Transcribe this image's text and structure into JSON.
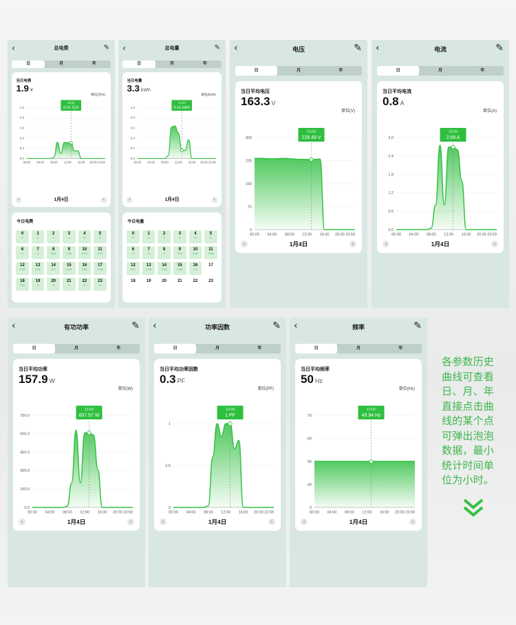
{
  "tabs": [
    "日",
    "月",
    "年"
  ],
  "panels": [
    {
      "id": "fee",
      "title": "总电费",
      "summary_label": "当日电费",
      "summary_value": "1.9",
      "summary_unit": "¥",
      "unit_label": "单位(元/¥)",
      "tooltip_time": "13:00",
      "tooltip_value": "0.31 元/¥",
      "date": "1月4日",
      "y_ticks": [
        "1.0",
        "0.8",
        "0.6",
        "0.4",
        "0.2",
        "0.0"
      ],
      "x_ticks": [
        "00:00",
        "04:00",
        "08:00",
        "12:00",
        "16:00",
        "20:00 23:59"
      ],
      "chart_data": {
        "type": "area",
        "x": [
          "00:00",
          "01:00",
          "02:00",
          "03:00",
          "04:00",
          "05:00",
          "06:00",
          "07:00",
          "08:00",
          "09:00",
          "10:00",
          "11:00",
          "12:00",
          "13:00",
          "14:00",
          "15:00",
          "16:00",
          "17:00",
          "18:00",
          "19:00",
          "20:00",
          "21:00",
          "22:00",
          "23:00"
        ],
        "y": [
          0,
          0,
          0,
          0,
          0,
          0,
          0,
          0,
          0.02,
          0.32,
          0.1,
          0.31,
          0.31,
          0.31,
          0.15,
          0.15,
          0,
          0,
          0,
          0,
          0,
          0,
          0,
          0
        ],
        "ylim": [
          0,
          1.0
        ],
        "highlight_x": "13:00"
      },
      "list_title": "今日电费",
      "days": [
        {
          "d": "0",
          "v": "0"
        },
        {
          "d": "1",
          "v": "0"
        },
        {
          "d": "2",
          "v": "0"
        },
        {
          "d": "3",
          "v": "0"
        },
        {
          "d": "4",
          "v": "0"
        },
        {
          "d": "5",
          "v": "0"
        },
        {
          "d": "6",
          "v": "0"
        },
        {
          "d": "7",
          "v": "0"
        },
        {
          "d": "8",
          "v": "0.54"
        },
        {
          "d": "9",
          "v": "0.32"
        },
        {
          "d": "10",
          "v": "0.23"
        },
        {
          "d": "11",
          "v": "0.07"
        },
        {
          "d": "12",
          "v": "0.32"
        },
        {
          "d": "13",
          "v": "0.31"
        },
        {
          "d": "14",
          "v": "0.3"
        },
        {
          "d": "15",
          "v": "0.29"
        },
        {
          "d": "16",
          "v": "0.37"
        },
        {
          "d": "17",
          "v": "0.15"
        },
        {
          "d": "18",
          "v": "0.01"
        },
        {
          "d": "19",
          "v": "0"
        },
        {
          "d": "20",
          "v": "0"
        },
        {
          "d": "21",
          "v": "0"
        },
        {
          "d": "22",
          "v": "0"
        },
        {
          "d": "23",
          "v": "0"
        }
      ]
    },
    {
      "id": "energy",
      "title": "总电量",
      "summary_label": "当日电量",
      "summary_value": "3.3",
      "summary_unit": "kWh",
      "unit_label": "单位(kWh)",
      "tooltip_time": "13:00",
      "tooltip_value": "0.16 kWh",
      "date": "1月4日",
      "y_ticks": [
        "1.0",
        "0.8",
        "0.6",
        "0.4",
        "0.2",
        "0.0"
      ],
      "x_ticks": [
        "00:00",
        "04:00",
        "08:00",
        "12:00",
        "16:00",
        "20:00 23:59"
      ],
      "chart_data": {
        "type": "area",
        "x": [
          "00:00",
          "01:00",
          "02:00",
          "03:00",
          "04:00",
          "05:00",
          "06:00",
          "07:00",
          "08:00",
          "09:00",
          "10:00",
          "11:00",
          "12:00",
          "13:00",
          "14:00",
          "15:00",
          "16:00",
          "17:00",
          "18:00",
          "19:00",
          "20:00",
          "21:00",
          "22:00",
          "23:00"
        ],
        "y": [
          0,
          0,
          0,
          0,
          0,
          0,
          0,
          0,
          0,
          0.05,
          0.62,
          0.64,
          0.5,
          0.16,
          0.16,
          0.37,
          0,
          0,
          0,
          0,
          0,
          0,
          0,
          0
        ],
        "ylim": [
          0,
          1.0
        ],
        "highlight_x": "13:00"
      },
      "list_title": "今日电量",
      "days": [
        {
          "d": "0",
          "v": "0"
        },
        {
          "d": "1",
          "v": "0"
        },
        {
          "d": "2",
          "v": "0"
        },
        {
          "d": "3",
          "v": "0"
        },
        {
          "d": "4",
          "v": "0"
        },
        {
          "d": "5",
          "v": "0"
        },
        {
          "d": "6",
          "v": "0"
        },
        {
          "d": "7",
          "v": "0"
        },
        {
          "d": "8",
          "v": "0"
        },
        {
          "d": "9",
          "v": "0.6"
        },
        {
          "d": "10",
          "v": "0.63"
        },
        {
          "d": "11",
          "v": "0.66"
        },
        {
          "d": "12",
          "v": "0.57"
        },
        {
          "d": "13",
          "v": "0.16"
        },
        {
          "d": "14",
          "v": "0.15"
        },
        {
          "d": "15",
          "v": "0.14"
        },
        {
          "d": "16",
          "v": "0.4"
        },
        {
          "d": "17",
          "v": ""
        },
        {
          "d": "18",
          "v": ""
        },
        {
          "d": "19",
          "v": ""
        },
        {
          "d": "20",
          "v": ""
        },
        {
          "d": "21",
          "v": ""
        },
        {
          "d": "22",
          "v": ""
        },
        {
          "d": "23",
          "v": ""
        }
      ]
    },
    {
      "id": "voltage",
      "title": "电压",
      "summary_label": "当日平均电压",
      "summary_value": "163.3",
      "summary_unit": "V",
      "unit_label": "单位(V)",
      "tooltip_time": "13:00",
      "tooltip_value": "228.49 V",
      "date": "1月4日",
      "y_ticks": [
        "300",
        "225",
        "150",
        "75",
        "0"
      ],
      "x_ticks": [
        "00:00",
        "04:00",
        "08:00",
        "12:00",
        "16:00",
        "20:00 23:59"
      ],
      "chart_data": {
        "type": "area",
        "x": [
          "00:00",
          "01:00",
          "02:00",
          "03:00",
          "04:00",
          "05:00",
          "06:00",
          "07:00",
          "08:00",
          "09:00",
          "10:00",
          "11:00",
          "12:00",
          "13:00",
          "14:00",
          "15:00",
          "16:00",
          "17:00",
          "18:00",
          "19:00",
          "20:00",
          "21:00",
          "22:00",
          "23:00"
        ],
        "y": [
          232,
          232,
          232,
          231,
          231,
          231,
          232,
          232,
          231,
          230,
          229,
          229,
          228.5,
          228.49,
          229,
          230,
          0,
          0,
          0,
          0,
          0,
          0,
          0,
          0
        ],
        "ylim": [
          0,
          300
        ],
        "highlight_x": "13:00"
      }
    },
    {
      "id": "current",
      "title": "电流",
      "summary_label": "当日平均电流",
      "summary_value": "0.8",
      "summary_unit": "A",
      "unit_label": "单位(A)",
      "tooltip_time": "13:00",
      "tooltip_value": "2.69 A",
      "date": "1月4日",
      "y_ticks": [
        "3.0",
        "2.4",
        "1.8",
        "1.2",
        "0.6",
        "0.0"
      ],
      "x_ticks": [
        "00:00",
        "04:00",
        "08:00",
        "12:00",
        "16:00",
        "20:00 23:59"
      ],
      "chart_data": {
        "type": "area",
        "x": [
          "00:00",
          "01:00",
          "02:00",
          "03:00",
          "04:00",
          "05:00",
          "06:00",
          "07:00",
          "08:00",
          "09:00",
          "10:00",
          "11:00",
          "12:00",
          "13:00",
          "14:00",
          "15:00",
          "16:00",
          "17:00",
          "18:00",
          "19:00",
          "20:00",
          "21:00",
          "22:00",
          "23:00"
        ],
        "y": [
          0,
          0,
          0,
          0,
          0,
          0,
          0,
          0,
          0.05,
          0.8,
          2.75,
          0.8,
          2.69,
          2.69,
          2.6,
          1.6,
          0,
          0,
          0,
          0,
          0,
          0,
          0,
          0
        ],
        "ylim": [
          0,
          3.0
        ],
        "highlight_x": "13:00"
      }
    },
    {
      "id": "active_power",
      "title": "有功功率",
      "summary_label": "当日平均功率",
      "summary_value": "157.9",
      "summary_unit": "W",
      "unit_label": "单位(W)",
      "tooltip_time": "13:00",
      "tooltip_value": "607.57 W",
      "date": "1月4日",
      "y_ticks": [
        "750.0",
        "600.0",
        "450.0",
        "300.0",
        "150.0",
        "0.0"
      ],
      "x_ticks": [
        "00:00",
        "04:00",
        "08:00",
        "12:00",
        "16:00",
        "20:00 23:59"
      ],
      "chart_data": {
        "type": "area",
        "x": [
          "00:00",
          "01:00",
          "02:00",
          "03:00",
          "04:00",
          "05:00",
          "06:00",
          "07:00",
          "08:00",
          "09:00",
          "10:00",
          "11:00",
          "12:00",
          "13:00",
          "14:00",
          "15:00",
          "16:00",
          "17:00",
          "18:00",
          "19:00",
          "20:00",
          "21:00",
          "22:00",
          "23:00"
        ],
        "y": [
          0,
          0,
          0,
          0,
          0,
          0,
          0,
          0,
          10,
          200,
          630,
          200,
          607.57,
          607.57,
          590,
          310,
          0,
          0,
          0,
          0,
          0,
          0,
          0,
          0
        ],
        "ylim": [
          0,
          750
        ],
        "highlight_x": "13:00"
      }
    },
    {
      "id": "power_factor",
      "title": "功率因数",
      "summary_label": "当日平均功率因数",
      "summary_value": "0.3",
      "summary_unit": "PF",
      "unit_label": "单位(PF)",
      "tooltip_time": "13:00",
      "tooltip_value": "1 PF",
      "date": "1月4日",
      "y_ticks": [
        "1",
        "0.5",
        "0"
      ],
      "x_ticks": [
        "00:00",
        "04:00",
        "08:00",
        "12:00",
        "16:00",
        "20:00 23:59"
      ],
      "chart_data": {
        "type": "area",
        "x": [
          "00:00",
          "01:00",
          "02:00",
          "03:00",
          "04:00",
          "05:00",
          "06:00",
          "07:00",
          "08:00",
          "09:00",
          "10:00",
          "11:00",
          "12:00",
          "13:00",
          "14:00",
          "15:00",
          "16:00",
          "17:00",
          "18:00",
          "19:00",
          "20:00",
          "21:00",
          "22:00",
          "23:00"
        ],
        "y": [
          0,
          0,
          0,
          0,
          0,
          0,
          0,
          0,
          0.02,
          0.6,
          1.0,
          0.85,
          1.0,
          1.0,
          0.7,
          0.8,
          0,
          0,
          0,
          0,
          0,
          0,
          0,
          0
        ],
        "ylim": [
          0,
          1.1
        ],
        "highlight_x": "13:00"
      }
    },
    {
      "id": "frequency",
      "title": "频率",
      "summary_label": "当日平均频率",
      "summary_value": "50",
      "summary_unit": "Hz",
      "unit_label": "单位(Hz)",
      "tooltip_time": "13:00",
      "tooltip_value": "49.94 Hz",
      "date": "1月4日",
      "y_ticks": [
        "70",
        "60",
        "50",
        "40",
        "0"
      ],
      "x_ticks": [
        "00:00",
        "04:00",
        "08:00",
        "12:00",
        "16:00",
        "20:00 23:59"
      ],
      "chart_data": {
        "type": "area",
        "x": [
          "00:00",
          "01:00",
          "02:00",
          "03:00",
          "04:00",
          "05:00",
          "06:00",
          "07:00",
          "08:00",
          "09:00",
          "10:00",
          "11:00",
          "12:00",
          "13:00",
          "14:00",
          "15:00",
          "16:00",
          "17:00",
          "18:00",
          "19:00",
          "20:00",
          "21:00",
          "22:00",
          "23:00"
        ],
        "y": [
          50,
          50,
          50,
          50,
          50,
          50,
          50,
          50,
          50,
          50,
          50,
          50,
          49.95,
          49.94,
          50,
          50,
          50,
          50,
          50,
          50,
          50,
          50,
          50,
          50
        ],
        "ylim": [
          0,
          70
        ],
        "y_scale_ticks": [
          0,
          40,
          50,
          60,
          70
        ],
        "highlight_x": "13:00"
      }
    }
  ],
  "side_text": "各参数历史曲线可查看日、月、年直接点击曲线的某个点可弹出泡泡数据，最小统计时间单位为小时。",
  "colors": {
    "accent": "#33c043",
    "panel": "#d9e7e2",
    "tooltip": "#2fbf3f"
  }
}
